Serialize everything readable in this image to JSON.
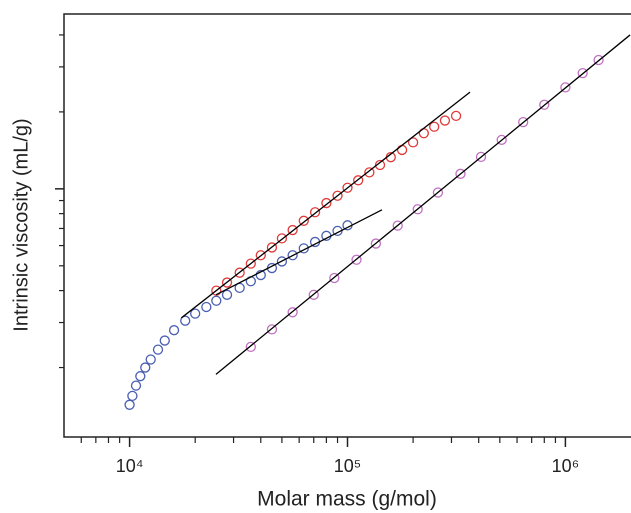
{
  "chart_data": {
    "type": "scatter",
    "xlabel": "Molar mass (g/mol)",
    "ylabel": "Intrinsic viscosity (mL/g)",
    "xlog": true,
    "ylog": true,
    "xlim": [
      5000,
      2000000
    ],
    "ylim": [
      10.7,
      483
    ],
    "xticks": [
      {
        "value": 10000,
        "label": "10⁴"
      },
      {
        "value": 100000,
        "label": "10⁵"
      },
      {
        "value": 1000000,
        "label": "10⁶"
      }
    ],
    "xminor_ticks": [
      6000,
      7000,
      8000,
      9000,
      20000,
      30000,
      40000,
      50000,
      60000,
      70000,
      80000,
      90000,
      200000,
      300000,
      400000,
      500000,
      600000,
      700000,
      800000,
      900000
    ],
    "yticks": [
      100
    ],
    "yminor_ticks": [
      20,
      30,
      40,
      50,
      60,
      70,
      80,
      90,
      200,
      300,
      400
    ],
    "series": [
      {
        "color": "#e03a3a",
        "x": [
          25000,
          28000,
          32000,
          36000,
          40000,
          45000,
          50000,
          56000,
          63000,
          71000,
          80000,
          90000,
          100000,
          112000,
          126000,
          141000,
          158000,
          178000,
          200000,
          224000,
          250000,
          280000,
          315000
        ],
        "values": [
          40,
          43,
          47,
          51,
          55,
          59,
          64,
          69,
          75,
          81,
          88,
          94,
          101,
          108,
          116,
          124,
          133,
          142,
          152,
          165,
          175,
          185,
          193
        ]
      },
      {
        "color": "#4a5fb0",
        "x": [
          10000,
          10300,
          10700,
          11200,
          11800,
          12500,
          13500,
          14500,
          16000,
          18000,
          20000,
          22500,
          25000,
          28000,
          32000,
          36000,
          40000,
          45000,
          50000,
          56000,
          63000,
          71000,
          80000,
          90000,
          100000
        ],
        "values": [
          14.3,
          15.5,
          17,
          18.5,
          20,
          21.5,
          23.5,
          25.5,
          28,
          30.5,
          32.5,
          34.5,
          36.5,
          38.5,
          41,
          43.5,
          46,
          49,
          52,
          55,
          58.5,
          62,
          65.5,
          68.5,
          72
        ]
      },
      {
        "color": "#c070c0",
        "x": [
          36000,
          45000,
          56000,
          70000,
          87000,
          110000,
          135000,
          170000,
          210000,
          260000,
          330000,
          410000,
          510000,
          640000,
          800000,
          1000000,
          1200000,
          1420000
        ],
        "values": [
          24.1,
          28.2,
          32.9,
          38.5,
          44.8,
          52.8,
          61.1,
          71.8,
          83.2,
          96.8,
          114.5,
          133.4,
          155.5,
          182.4,
          213.3,
          249.5,
          283.6,
          319.2
        ]
      }
    ],
    "fit_lines": [
      {
        "color": "#000000",
        "x": [
          17300,
          365000
        ],
        "values": [
          31.3,
          239
        ]
      },
      {
        "color": "#000000",
        "x": [
          24900,
          144000
        ],
        "values": [
          38.5,
          82.8
        ]
      },
      {
        "color": "#000000",
        "x": [
          24900,
          1980000
        ],
        "values": [
          18.8,
          400
        ]
      }
    ]
  }
}
